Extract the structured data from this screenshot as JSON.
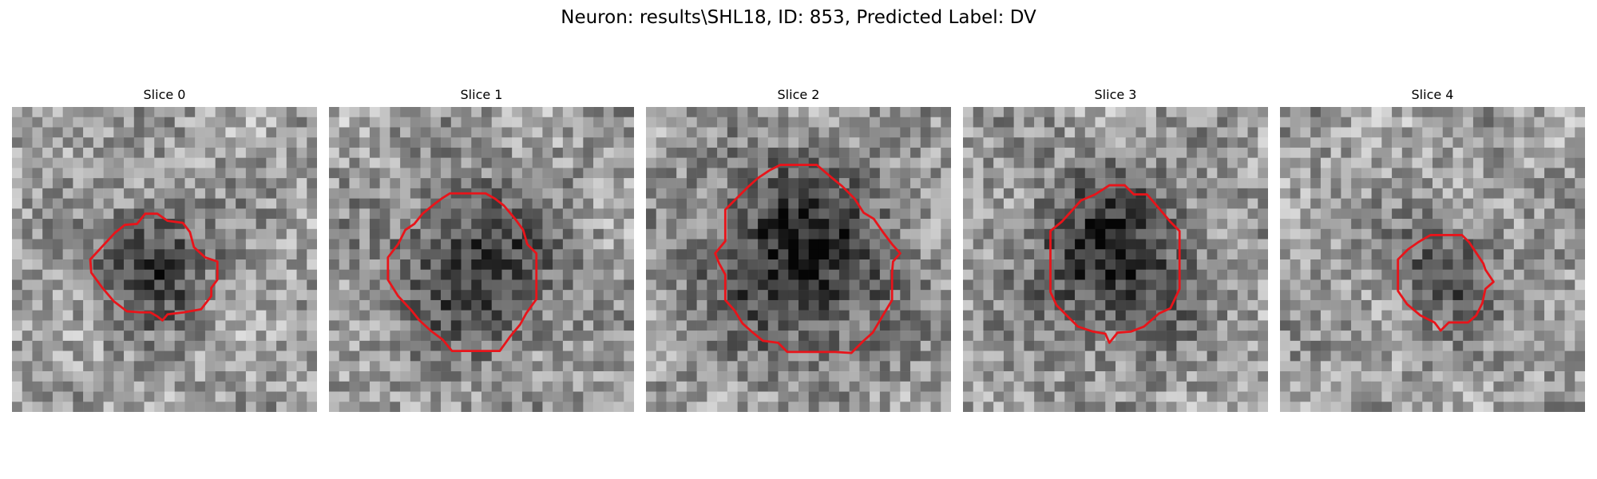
{
  "figure": {
    "suptitle": "Neuron: results\\SHL18, ID: 853, Predicted Label: DV"
  },
  "panels": [
    {
      "title": "Slice 0",
      "contour_color": "#e8141a"
    },
    {
      "title": "Slice 1",
      "contour_color": "#e8141a"
    },
    {
      "title": "Slice 2",
      "contour_color": "#e8141a"
    },
    {
      "title": "Slice 3",
      "contour_color": "#e8141a"
    },
    {
      "title": "Slice 4",
      "contour_color": "#e8141a"
    }
  ]
}
